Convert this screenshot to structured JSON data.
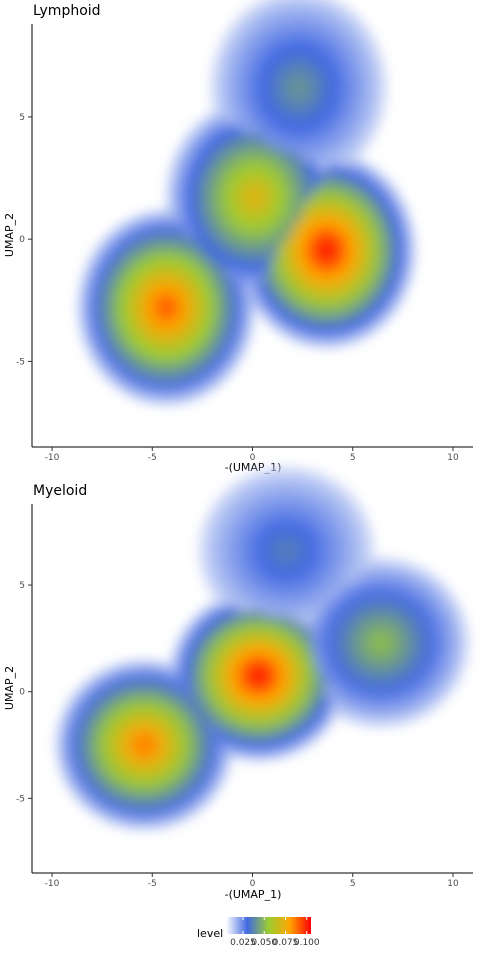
{
  "chart_data": [
    {
      "type": "heatmap",
      "subtype": "2d-density-filled-contour",
      "title": "Lymphoid",
      "xlabel": "-(UMAP_1)",
      "ylabel": "UMAP_2",
      "xlim": [
        -11,
        11
      ],
      "ylim": [
        -8.5,
        8.8
      ],
      "xticks": [
        -10,
        -5,
        0,
        5,
        10
      ],
      "yticks": [
        -5,
        0,
        5
      ],
      "grid": false,
      "clusters": [
        {
          "x": 3.7,
          "y": -0.45,
          "peak_level": 0.1
        },
        {
          "x": -4.3,
          "y": -2.8,
          "peak_level": 0.09
        },
        {
          "x": 0.1,
          "y": 1.7,
          "peak_level": 0.07
        },
        {
          "x": 2.3,
          "y": 6.2,
          "peak_level": 0.04
        }
      ]
    },
    {
      "type": "heatmap",
      "subtype": "2d-density-filled-contour",
      "title": "Myeloid",
      "xlabel": "-(UMAP_1)",
      "ylabel": "UMAP_2",
      "xlim": [
        -11,
        11
      ],
      "ylim": [
        -8.5,
        8.8
      ],
      "xticks": [
        -10,
        -5,
        0,
        5,
        10
      ],
      "yticks": [
        -5,
        0,
        5
      ],
      "grid": false,
      "clusters": [
        {
          "x": 0.3,
          "y": 0.75,
          "peak_level": 0.1
        },
        {
          "x": -5.4,
          "y": -2.5,
          "peak_level": 0.085
        },
        {
          "x": 6.4,
          "y": 2.3,
          "peak_level": 0.05
        },
        {
          "x": 1.7,
          "y": 6.6,
          "peak_level": 0.035
        }
      ]
    }
  ],
  "legend": {
    "title": "level",
    "placement": "bottom",
    "tick_labels": [
      "0.025",
      "0.050",
      "0.075",
      "0.100"
    ],
    "tick_values": [
      0.025,
      0.05,
      0.075,
      0.1
    ],
    "range": [
      0.005,
      0.105
    ],
    "colors": [
      "#ffffff",
      "#4169e1",
      "#9acd32",
      "#ffa500",
      "#ff0000"
    ]
  }
}
